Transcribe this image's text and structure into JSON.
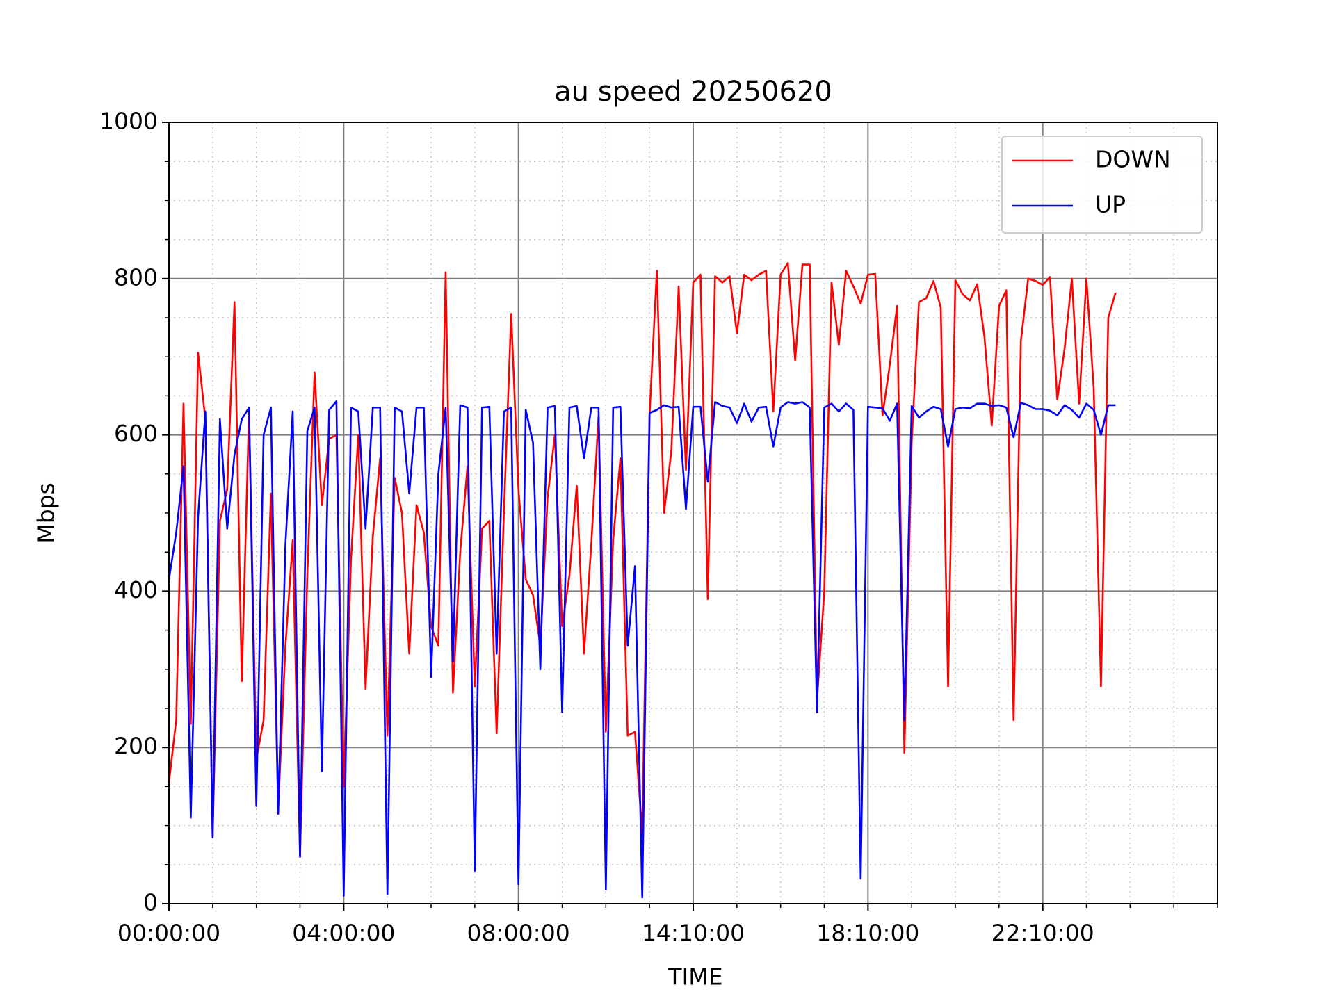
{
  "chart_data": {
    "type": "line",
    "title": "au speed 20250620",
    "xlabel": "TIME",
    "ylabel": "Mbps",
    "xlim": [
      0,
      144
    ],
    "xticks": [
      {
        "value": 0,
        "label": "00:00:00"
      },
      {
        "value": 24,
        "label": "04:00:00"
      },
      {
        "value": 48,
        "label": "08:00:00"
      },
      {
        "value": 72,
        "label": "14:10:00"
      },
      {
        "value": 96,
        "label": "18:10:00"
      },
      {
        "value": 120,
        "label": "22:10:00"
      }
    ],
    "ylim": [
      0,
      1000
    ],
    "yticks": [
      0,
      200,
      400,
      600,
      800,
      1000
    ],
    "grid": true,
    "minor_grid": true,
    "legend": "upper right",
    "series": [
      {
        "name": "DOWN",
        "color": "#ff0000",
        "values": [
          155,
          235,
          640,
          230,
          705,
          620,
          85,
          490,
          530,
          770,
          285,
          630,
          185,
          235,
          525,
          120,
          330,
          465,
          60,
          420,
          680,
          510,
          595,
          600,
          150,
          440,
          600,
          275,
          470,
          570,
          215,
          545,
          500,
          320,
          510,
          475,
          355,
          330,
          808,
          270,
          450,
          560,
          278,
          480,
          490,
          218,
          500,
          755,
          530,
          415,
          395,
          330,
          520,
          600,
          355,
          420,
          535,
          320,
          460,
          625,
          220,
          465,
          570,
          215,
          220,
          90,
          625,
          810,
          500,
          580,
          790,
          555,
          795,
          805,
          390,
          803,
          795,
          803,
          730,
          805,
          798,
          805,
          810,
          630,
          805,
          820,
          695,
          818,
          818,
          260,
          400,
          795,
          715,
          810,
          790,
          768,
          805,
          806,
          625,
          690,
          765,
          193,
          590,
          770,
          775,
          797,
          763,
          278,
          798,
          780,
          772,
          793,
          725,
          612,
          765,
          785,
          235,
          720,
          800,
          797,
          792,
          802,
          645,
          710,
          800,
          640,
          800,
          660,
          278,
          750,
          782
        ]
      },
      {
        "name": "UP",
        "color": "#0000ff",
        "values": [
          415,
          475,
          560,
          110,
          495,
          630,
          85,
          620,
          480,
          575,
          620,
          635,
          125,
          600,
          635,
          115,
          460,
          630,
          60,
          605,
          635,
          170,
          632,
          643,
          10,
          635,
          630,
          480,
          635,
          635,
          12,
          635,
          630,
          525,
          635,
          635,
          290,
          550,
          635,
          310,
          638,
          635,
          42,
          635,
          636,
          320,
          630,
          635,
          25,
          632,
          590,
          300,
          635,
          637,
          245,
          635,
          637,
          570,
          635,
          635,
          18,
          635,
          636,
          330,
          432,
          8,
          628,
          632,
          638,
          635,
          636,
          505,
          636,
          636,
          540,
          642,
          637,
          635,
          615,
          640,
          617,
          635,
          636,
          585,
          635,
          642,
          640,
          642,
          635,
          245,
          635,
          640,
          630,
          640,
          632,
          32,
          636,
          635,
          634,
          618,
          640,
          235,
          637,
          622,
          630,
          636,
          633,
          585,
          633,
          635,
          634,
          640,
          640,
          637,
          638,
          635,
          597,
          641,
          638,
          633,
          633,
          631,
          625,
          638,
          632,
          622,
          640,
          632,
          600,
          638,
          638
        ]
      }
    ]
  }
}
